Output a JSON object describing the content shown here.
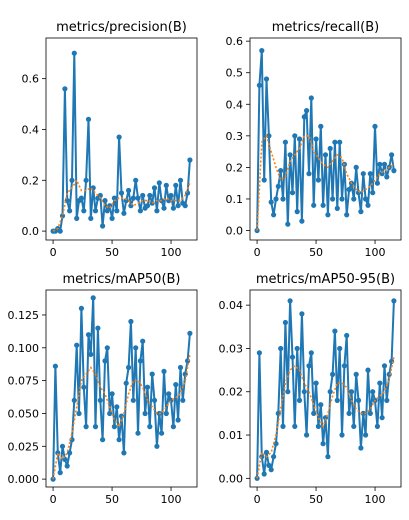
{
  "figure": {
    "background": "#ffffff"
  },
  "colors": {
    "raw": "#1f77b4",
    "smooth": "#ff7f0e"
  },
  "chart_data": [
    {
      "type": "line",
      "title": "metrics/precision(B)",
      "xlim": [
        -6,
        122
      ],
      "ylim": [
        -0.035,
        0.76
      ],
      "xticks": [
        "0",
        "50",
        "100"
      ],
      "xtick_values": [
        0,
        50,
        100
      ],
      "yticks": [
        "0.0",
        "0.2",
        "0.4",
        "0.6"
      ],
      "ytick_values": [
        0,
        0.2,
        0.4,
        0.6
      ],
      "series": [
        {
          "role": "raw",
          "x": [
            0,
            2,
            4,
            6,
            8,
            10,
            12,
            14,
            16,
            18,
            20,
            22,
            24,
            26,
            28,
            30,
            32,
            34,
            36,
            38,
            40,
            42,
            44,
            46,
            48,
            50,
            52,
            54,
            56,
            58,
            60,
            62,
            64,
            66,
            68,
            70,
            72,
            74,
            76,
            78,
            80,
            82,
            84,
            86,
            88,
            90,
            92,
            94,
            96,
            98,
            100,
            102,
            104,
            106,
            108,
            110,
            112,
            114,
            116
          ],
          "y": [
            0.0,
            0.0,
            0.01,
            0.0,
            0.06,
            0.56,
            0.12,
            0.08,
            0.2,
            0.7,
            0.05,
            0.12,
            0.13,
            0.08,
            0.2,
            0.44,
            0.05,
            0.17,
            0.08,
            0.13,
            0.14,
            0.02,
            0.12,
            0.08,
            0.1,
            0.05,
            0.13,
            0.08,
            0.37,
            0.15,
            0.07,
            0.12,
            0.16,
            0.1,
            0.13,
            0.2,
            0.13,
            0.08,
            0.14,
            0.09,
            0.1,
            0.14,
            0.11,
            0.17,
            0.08,
            0.19,
            0.12,
            0.09,
            0.18,
            0.12,
            0.14,
            0.09,
            0.18,
            0.1,
            0.2,
            0.11,
            0.1,
            0.15,
            0.28
          ]
        },
        {
          "role": "smooth",
          "x": [
            0,
            4,
            8,
            12,
            16,
            20,
            24,
            28,
            32,
            36,
            40,
            44,
            48,
            52,
            56,
            60,
            64,
            68,
            72,
            76,
            80,
            84,
            88,
            92,
            96,
            100,
            104,
            108,
            112,
            116
          ],
          "y": [
            0.0,
            0.01,
            0.06,
            0.15,
            0.17,
            0.2,
            0.16,
            0.16,
            0.17,
            0.15,
            0.13,
            0.1,
            0.09,
            0.12,
            0.13,
            0.13,
            0.12,
            0.1,
            0.11,
            0.12,
            0.12,
            0.11,
            0.12,
            0.12,
            0.13,
            0.12,
            0.12,
            0.12,
            0.14,
            0.19
          ]
        }
      ]
    },
    {
      "type": "line",
      "title": "metrics/recall(B)",
      "xlim": [
        -6,
        122
      ],
      "ylim": [
        -0.03,
        0.61
      ],
      "xticks": [
        "0",
        "50",
        "100"
      ],
      "xtick_values": [
        0,
        50,
        100
      ],
      "yticks": [
        "0.0",
        "0.1",
        "0.2",
        "0.3",
        "0.4",
        "0.5",
        "0.6"
      ],
      "ytick_values": [
        0,
        0.1,
        0.2,
        0.3,
        0.4,
        0.5,
        0.6
      ],
      "series": [
        {
          "role": "raw",
          "x": [
            0,
            2,
            4,
            6,
            8,
            10,
            12,
            14,
            16,
            18,
            20,
            22,
            24,
            26,
            28,
            30,
            32,
            34,
            36,
            38,
            40,
            42,
            44,
            46,
            48,
            50,
            52,
            54,
            56,
            58,
            60,
            62,
            64,
            66,
            68,
            70,
            72,
            74,
            76,
            78,
            80,
            82,
            84,
            86,
            88,
            90,
            92,
            94,
            96,
            98,
            100,
            102,
            104,
            106,
            108,
            110,
            112,
            114,
            116
          ],
          "y": [
            0.0,
            0.46,
            0.57,
            0.16,
            0.48,
            0.3,
            0.09,
            0.05,
            0.1,
            0.14,
            0.19,
            0.1,
            0.28,
            0.02,
            0.24,
            0.12,
            0.3,
            0.06,
            0.29,
            0.03,
            0.36,
            0.38,
            0.18,
            0.42,
            0.08,
            0.29,
            0.16,
            0.33,
            0.08,
            0.24,
            0.05,
            0.26,
            0.1,
            0.28,
            0.07,
            0.28,
            0.1,
            0.21,
            0.05,
            0.13,
            0.15,
            0.1,
            0.2,
            0.12,
            0.06,
            0.18,
            0.1,
            0.08,
            0.18,
            0.12,
            0.33,
            0.15,
            0.21,
            0.18,
            0.21,
            0.17,
            0.2,
            0.24,
            0.19
          ]
        },
        {
          "role": "smooth",
          "x": [
            0,
            4,
            8,
            12,
            16,
            20,
            24,
            28,
            32,
            36,
            40,
            44,
            48,
            52,
            56,
            60,
            64,
            68,
            72,
            76,
            80,
            84,
            88,
            92,
            96,
            100,
            104,
            108,
            112,
            116
          ],
          "y": [
            0.0,
            0.28,
            0.3,
            0.25,
            0.2,
            0.16,
            0.17,
            0.22,
            0.24,
            0.26,
            0.3,
            0.3,
            0.25,
            0.23,
            0.21,
            0.2,
            0.22,
            0.24,
            0.23,
            0.18,
            0.15,
            0.13,
            0.12,
            0.13,
            0.14,
            0.16,
            0.18,
            0.19,
            0.2,
            0.21
          ]
        }
      ]
    },
    {
      "type": "line",
      "title": "metrics/mAP50(B)",
      "xlim": [
        -6,
        122
      ],
      "ylim": [
        -0.006,
        0.144
      ],
      "xticks": [
        "0",
        "50",
        "100"
      ],
      "xtick_values": [
        0,
        50,
        100
      ],
      "yticks": [
        "0.000",
        "0.025",
        "0.050",
        "0.075",
        "0.100",
        "0.125"
      ],
      "ytick_values": [
        0,
        0.025,
        0.05,
        0.075,
        0.1,
        0.125
      ],
      "series": [
        {
          "role": "raw",
          "x": [
            0,
            2,
            4,
            6,
            8,
            10,
            12,
            14,
            16,
            18,
            20,
            22,
            24,
            26,
            28,
            30,
            32,
            34,
            36,
            38,
            40,
            42,
            44,
            46,
            48,
            50,
            52,
            54,
            56,
            58,
            60,
            62,
            64,
            66,
            68,
            70,
            72,
            74,
            76,
            78,
            80,
            82,
            84,
            86,
            88,
            90,
            92,
            94,
            96,
            98,
            100,
            102,
            104,
            106,
            108,
            110,
            112,
            114,
            116
          ],
          "y": [
            0.0,
            0.086,
            0.02,
            0.005,
            0.025,
            0.015,
            0.01,
            0.02,
            0.03,
            0.06,
            0.102,
            0.05,
            0.13,
            0.07,
            0.04,
            0.11,
            0.095,
            0.138,
            0.04,
            0.115,
            0.06,
            0.03,
            0.09,
            0.1,
            0.05,
            0.065,
            0.04,
            0.055,
            0.03,
            0.048,
            0.02,
            0.073,
            0.085,
            0.12,
            0.06,
            0.1,
            0.035,
            0.09,
            0.105,
            0.05,
            0.07,
            0.04,
            0.08,
            0.06,
            0.025,
            0.05,
            0.035,
            0.082,
            0.05,
            0.065,
            0.06,
            0.04,
            0.072,
            0.045,
            0.085,
            0.06,
            0.08,
            0.09,
            0.111
          ]
        },
        {
          "role": "smooth",
          "x": [
            0,
            4,
            8,
            12,
            16,
            20,
            24,
            28,
            32,
            36,
            40,
            44,
            48,
            52,
            56,
            60,
            64,
            68,
            72,
            76,
            80,
            84,
            88,
            92,
            96,
            100,
            104,
            108,
            112,
            116
          ],
          "y": [
            0.0,
            0.02,
            0.015,
            0.02,
            0.035,
            0.055,
            0.075,
            0.08,
            0.085,
            0.08,
            0.07,
            0.065,
            0.055,
            0.045,
            0.04,
            0.05,
            0.065,
            0.075,
            0.075,
            0.07,
            0.06,
            0.055,
            0.05,
            0.05,
            0.055,
            0.06,
            0.062,
            0.065,
            0.075,
            0.095
          ]
        }
      ]
    },
    {
      "type": "line",
      "title": "metrics/mAP50-95(B)",
      "xlim": [
        -6,
        122
      ],
      "ylim": [
        -0.002,
        0.0435
      ],
      "xticks": [
        "0",
        "50",
        "100"
      ],
      "xtick_values": [
        0,
        50,
        100
      ],
      "yticks": [
        "0.00",
        "0.01",
        "0.02",
        "0.03",
        "0.04"
      ],
      "ytick_values": [
        0,
        0.01,
        0.02,
        0.03,
        0.04
      ],
      "series": [
        {
          "role": "raw",
          "x": [
            0,
            2,
            4,
            6,
            8,
            10,
            12,
            14,
            16,
            18,
            20,
            22,
            24,
            26,
            28,
            30,
            32,
            34,
            36,
            38,
            40,
            42,
            44,
            46,
            48,
            50,
            52,
            54,
            56,
            58,
            60,
            62,
            64,
            66,
            68,
            70,
            72,
            74,
            76,
            78,
            80,
            82,
            84,
            86,
            88,
            90,
            92,
            94,
            96,
            98,
            100,
            102,
            104,
            106,
            108,
            110,
            112,
            114,
            116
          ],
          "y": [
            0.0,
            0.029,
            0.005,
            0.001,
            0.006,
            0.003,
            0.002,
            0.005,
            0.008,
            0.015,
            0.03,
            0.012,
            0.036,
            0.02,
            0.041,
            0.028,
            0.012,
            0.03,
            0.018,
            0.038,
            0.02,
            0.01,
            0.026,
            0.029,
            0.015,
            0.022,
            0.012,
            0.017,
            0.008,
            0.014,
            0.005,
            0.02,
            0.024,
            0.034,
            0.018,
            0.03,
            0.01,
            0.026,
            0.033,
            0.015,
            0.02,
            0.012,
            0.024,
            0.018,
            0.007,
            0.015,
            0.01,
            0.025,
            0.015,
            0.02,
            0.018,
            0.012,
            0.022,
            0.014,
            0.026,
            0.018,
            0.024,
            0.027,
            0.041
          ]
        },
        {
          "role": "smooth",
          "x": [
            0,
            4,
            8,
            12,
            16,
            20,
            24,
            28,
            32,
            36,
            40,
            44,
            48,
            52,
            56,
            60,
            64,
            68,
            72,
            76,
            80,
            84,
            88,
            92,
            96,
            100,
            104,
            108,
            112,
            116
          ],
          "y": [
            0.0,
            0.006,
            0.005,
            0.006,
            0.01,
            0.016,
            0.022,
            0.025,
            0.026,
            0.025,
            0.022,
            0.02,
            0.017,
            0.014,
            0.012,
            0.015,
            0.019,
            0.022,
            0.022,
            0.021,
            0.018,
            0.016,
            0.015,
            0.015,
            0.016,
            0.018,
            0.019,
            0.02,
            0.023,
            0.028
          ]
        }
      ]
    }
  ]
}
